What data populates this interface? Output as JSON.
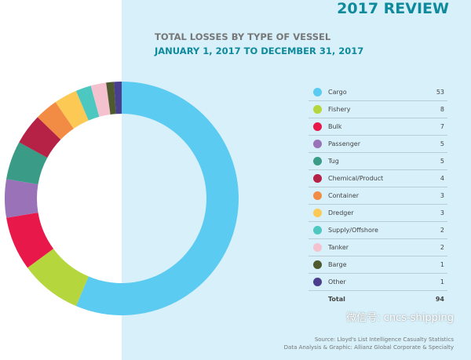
{
  "header": {
    "review": "2017 REVIEW",
    "title": "TOTAL LOSSES BY TYPE OF VESSEL",
    "subtitle": "JANUARY 1, 2017 TO DECEMBER 31, 2017"
  },
  "chart_data": {
    "type": "pie",
    "title": "TOTAL LOSSES BY TYPE OF VESSEL",
    "categories": [
      "Cargo",
      "Fishery",
      "Bulk",
      "Passenger",
      "Tug",
      "Chemical/Product",
      "Container",
      "Dredger",
      "Supply/Offshore",
      "Tanker",
      "Barge",
      "Other"
    ],
    "values": [
      53,
      8,
      7,
      5,
      5,
      4,
      3,
      3,
      2,
      2,
      1,
      1
    ],
    "colors": [
      "#5bcbf2",
      "#b5d63d",
      "#e8194a",
      "#9a72b8",
      "#3a9b86",
      "#b52245",
      "#f28c45",
      "#fdc955",
      "#4cc8c0",
      "#f4c2cf",
      "#4e5a2e",
      "#4a3f8f"
    ],
    "total_label": "Total",
    "total": 94
  },
  "footer": {
    "source": "Source: Lloyd's List Intelligence Casualty Statistics",
    "analysis": "Data Analysis & Graphic: Allianz Global Corporate & Specialty",
    "watermark": "微信号: cncs-shipping"
  }
}
